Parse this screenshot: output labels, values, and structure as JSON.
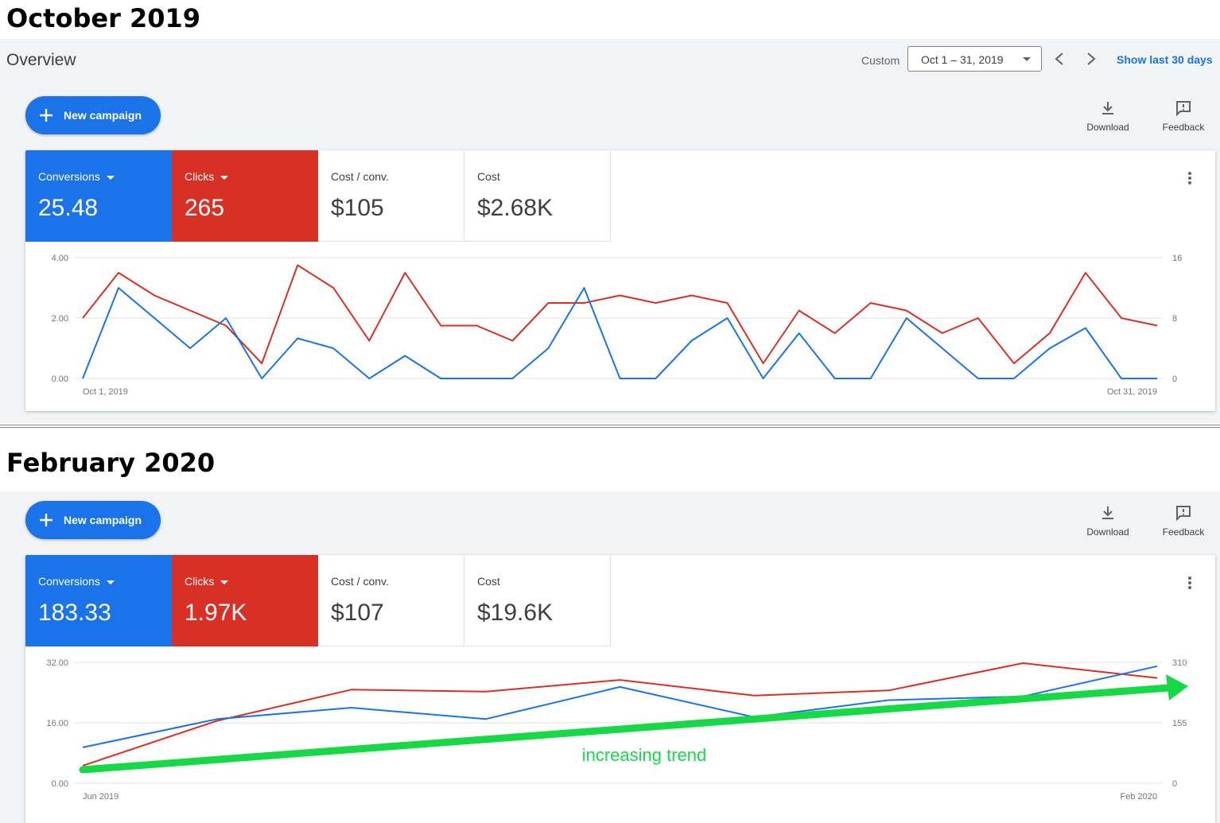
{
  "colors": {
    "conversions": "#1a73e8",
    "clicks": "#d93025",
    "trend": "#16d946",
    "accent": "#1a73e8"
  },
  "top": {
    "heading": "October 2019",
    "overview_title": "Overview",
    "custom_label": "Custom",
    "date_range": "Oct 1 – 31, 2019",
    "show_last": "Show last 30 days",
    "new_campaign": "New campaign",
    "download": "Download",
    "feedback": "Feedback",
    "metrics": [
      {
        "label": "Conversions",
        "value": "25.48"
      },
      {
        "label": "Clicks",
        "value": "265"
      },
      {
        "label": "Cost / conv.",
        "value": "$105"
      },
      {
        "label": "Cost",
        "value": "$2.68K"
      }
    ],
    "chart_data": {
      "type": "line",
      "x_start_label": "Oct 1, 2019",
      "x_end_label": "Oct 31, 2019",
      "y_left": {
        "ticks": [
          "4.00",
          "2.00",
          "0.00"
        ],
        "range": [
          0,
          4
        ]
      },
      "y_right": {
        "ticks": [
          "16",
          "8",
          "0"
        ],
        "range": [
          0,
          16
        ]
      },
      "series": [
        {
          "name": "Conversions",
          "axis": "left",
          "values": [
            0,
            3,
            2,
            1,
            2,
            0,
            1.33,
            1,
            0,
            0.75,
            0,
            0,
            0,
            1,
            3,
            0,
            0,
            1.25,
            2,
            0,
            1.5,
            0,
            0,
            2,
            1,
            0,
            0,
            1,
            1.67,
            0,
            0
          ]
        },
        {
          "name": "Clicks",
          "axis": "right",
          "values": [
            8,
            14,
            11,
            9,
            7,
            2,
            15,
            12,
            5,
            14,
            7,
            7,
            5,
            10,
            10,
            11,
            10,
            11,
            10,
            2,
            9,
            6,
            10,
            9,
            6,
            8,
            2,
            6,
            14,
            8,
            7
          ]
        }
      ]
    }
  },
  "bottom": {
    "heading": "February 2020",
    "new_campaign": "New campaign",
    "download": "Download",
    "feedback": "Feedback",
    "metrics": [
      {
        "label": "Conversions",
        "value": "183.33"
      },
      {
        "label": "Clicks",
        "value": "1.97K"
      },
      {
        "label": "Cost / conv.",
        "value": "$107"
      },
      {
        "label": "Cost",
        "value": "$19.6K"
      }
    ],
    "chart_data": {
      "type": "line",
      "x_start_label": "Jun 2019",
      "x_end_label": "Feb 2020",
      "y_left": {
        "ticks": [
          "32.00",
          "16.00",
          "0.00"
        ],
        "range": [
          0,
          32
        ]
      },
      "y_right": {
        "ticks": [
          "310",
          "155",
          "0"
        ],
        "range": [
          0,
          310
        ]
      },
      "series": [
        {
          "name": "Conversions",
          "axis": "left",
          "values": [
            9.5,
            17,
            20,
            17,
            25.5,
            17.5,
            22,
            23,
            31
          ]
        },
        {
          "name": "Clicks",
          "axis": "right",
          "values": [
            45,
            160,
            240,
            235,
            265,
            225,
            238,
            308,
            270
          ]
        }
      ],
      "annotation": "increasing trend"
    }
  }
}
